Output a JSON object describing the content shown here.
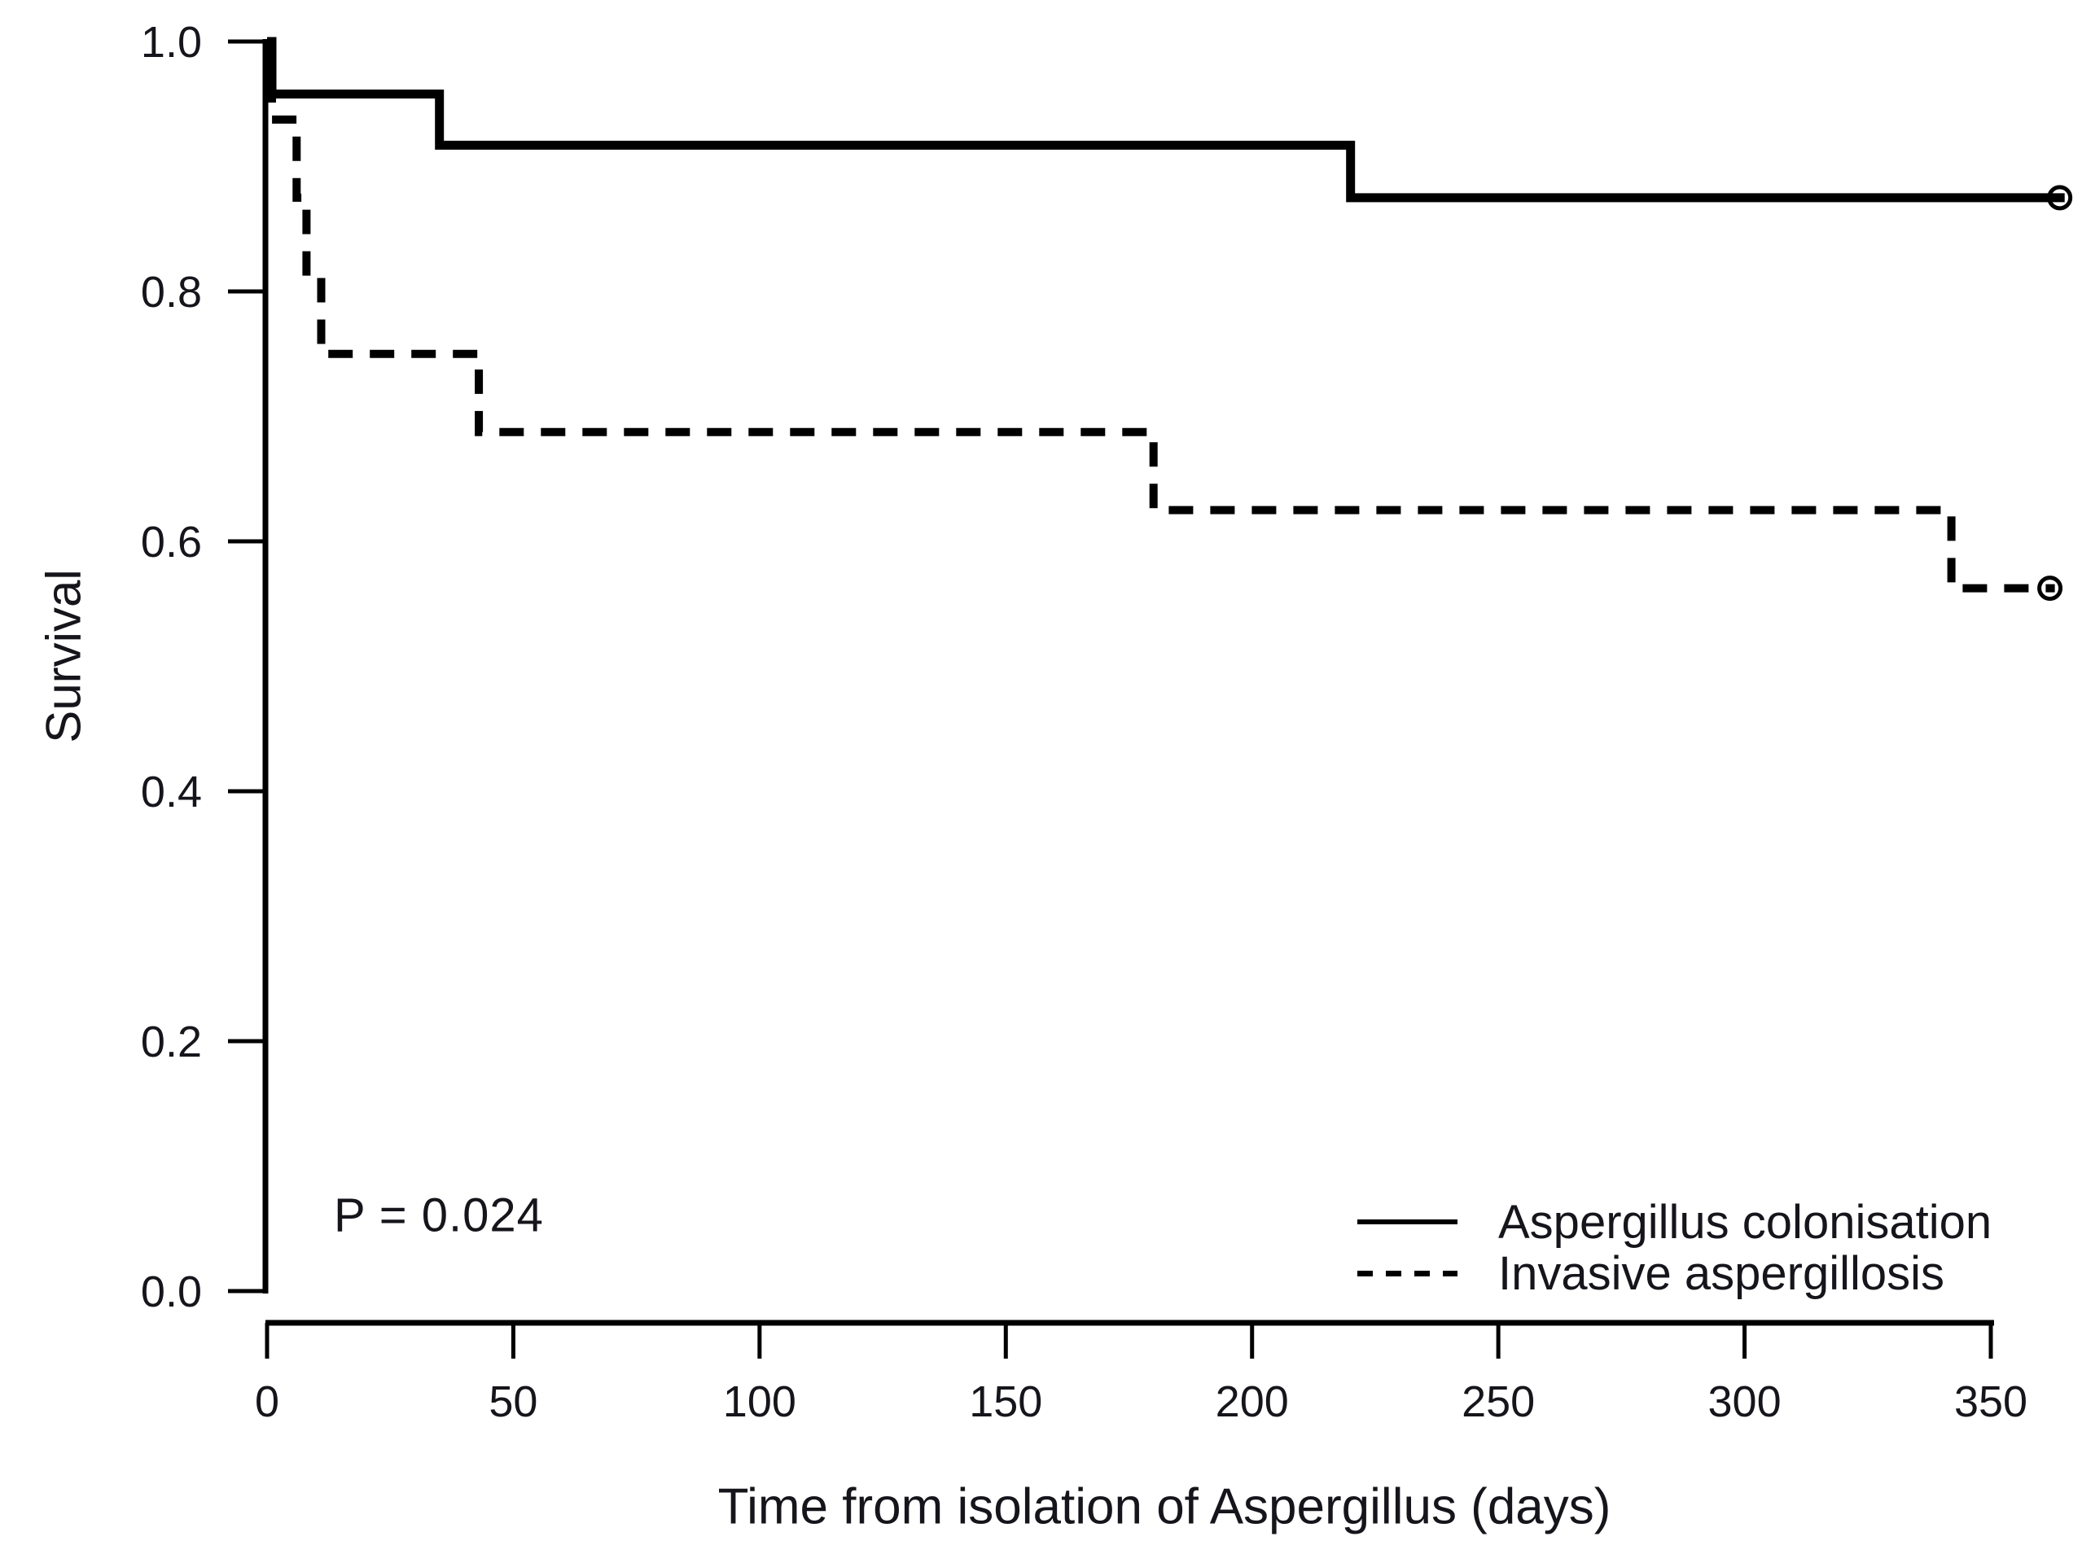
{
  "chart_data": {
    "type": "line",
    "subtype": "kaplan-meier-step",
    "title": "",
    "xlabel": "Time from isolation of Aspergillus (days)",
    "ylabel": "Survival",
    "xlim": [
      0,
      365
    ],
    "ylim": [
      0.0,
      1.0
    ],
    "grid": false,
    "legend_position": "bottom-right",
    "annotation": "P = 0.024",
    "x_ticks": [
      0,
      50,
      100,
      150,
      200,
      250,
      300,
      350
    ],
    "x_tick_labels": [
      "0",
      "50",
      "100",
      "150",
      "200",
      "250",
      "300",
      "350"
    ],
    "y_ticks": [
      1.0,
      0.8,
      0.6,
      0.4,
      0.2,
      0.0
    ],
    "y_tick_labels": [
      "1.0",
      "0.8",
      "0.6",
      "0.4",
      "0.2",
      "0.0"
    ],
    "line_color": "#000000",
    "series": [
      {
        "name": "Aspergillus colonisation",
        "style": "solid",
        "points": [
          [
            0,
            1.0
          ],
          [
            1,
            1.0
          ],
          [
            1,
            0.958
          ],
          [
            35,
            0.958
          ],
          [
            35,
            0.917
          ],
          [
            220,
            0.917
          ],
          [
            220,
            0.875
          ],
          [
            365,
            0.875
          ]
        ],
        "censor_marker": {
          "day": 364,
          "survival": 0.875,
          "shape": "open-circle"
        }
      },
      {
        "name": "Invasive aspergillosis",
        "style": "dashed",
        "points": [
          [
            0,
            1.0
          ],
          [
            1,
            1.0
          ],
          [
            1,
            0.9375
          ],
          [
            6,
            0.9375
          ],
          [
            6,
            0.875
          ],
          [
            8,
            0.875
          ],
          [
            8,
            0.8125
          ],
          [
            11,
            0.8125
          ],
          [
            11,
            0.75
          ],
          [
            43,
            0.75
          ],
          [
            43,
            0.6875
          ],
          [
            180,
            0.6875
          ],
          [
            180,
            0.625
          ],
          [
            342,
            0.625
          ],
          [
            342,
            0.5625
          ],
          [
            363,
            0.5625
          ]
        ],
        "censor_marker": {
          "day": 362,
          "survival": 0.5625,
          "shape": "open-circle"
        }
      }
    ]
  }
}
